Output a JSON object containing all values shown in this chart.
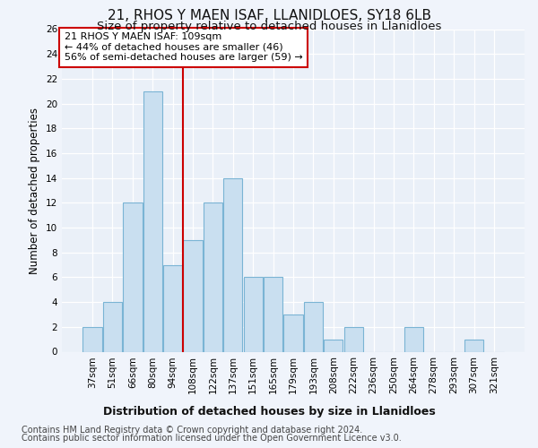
{
  "title": "21, RHOS Y MAEN ISAF, LLANIDLOES, SY18 6LB",
  "subtitle": "Size of property relative to detached houses in Llanidloes",
  "xlabel_bottom": "Distribution of detached houses by size in Llanidloes",
  "ylabel": "Number of detached properties",
  "categories": [
    "37sqm",
    "51sqm",
    "66sqm",
    "80sqm",
    "94sqm",
    "108sqm",
    "122sqm",
    "137sqm",
    "151sqm",
    "165sqm",
    "179sqm",
    "193sqm",
    "208sqm",
    "222sqm",
    "236sqm",
    "250sqm",
    "264sqm",
    "278sqm",
    "293sqm",
    "307sqm",
    "321sqm"
  ],
  "values": [
    2,
    4,
    12,
    21,
    7,
    9,
    12,
    14,
    6,
    6,
    3,
    4,
    1,
    2,
    0,
    0,
    2,
    0,
    0,
    1,
    0
  ],
  "bar_color": "#c9dff0",
  "bar_edge_color": "#7ab4d4",
  "vline_color": "#cc0000",
  "annotation_line1": "21 RHOS Y MAEN ISAF: 109sqm",
  "annotation_line2": "← 44% of detached houses are smaller (46)",
  "annotation_line3": "56% of semi-detached houses are larger (59) →",
  "annotation_box_color": "#ffffff",
  "annotation_box_edge_color": "#cc0000",
  "ylim": [
    0,
    26
  ],
  "yticks": [
    0,
    2,
    4,
    6,
    8,
    10,
    12,
    14,
    16,
    18,
    20,
    22,
    24,
    26
  ],
  "footer1": "Contains HM Land Registry data © Crown copyright and database right 2024.",
  "footer2": "Contains public sector information licensed under the Open Government Licence v3.0.",
  "bg_color": "#f0f4fb",
  "plot_bg_color": "#eaf0f8",
  "title_fontsize": 11,
  "subtitle_fontsize": 9.5,
  "tick_fontsize": 7.5,
  "ylabel_fontsize": 8.5,
  "annotation_fontsize": 8,
  "xlabel_fontsize": 9,
  "footer_fontsize": 7
}
